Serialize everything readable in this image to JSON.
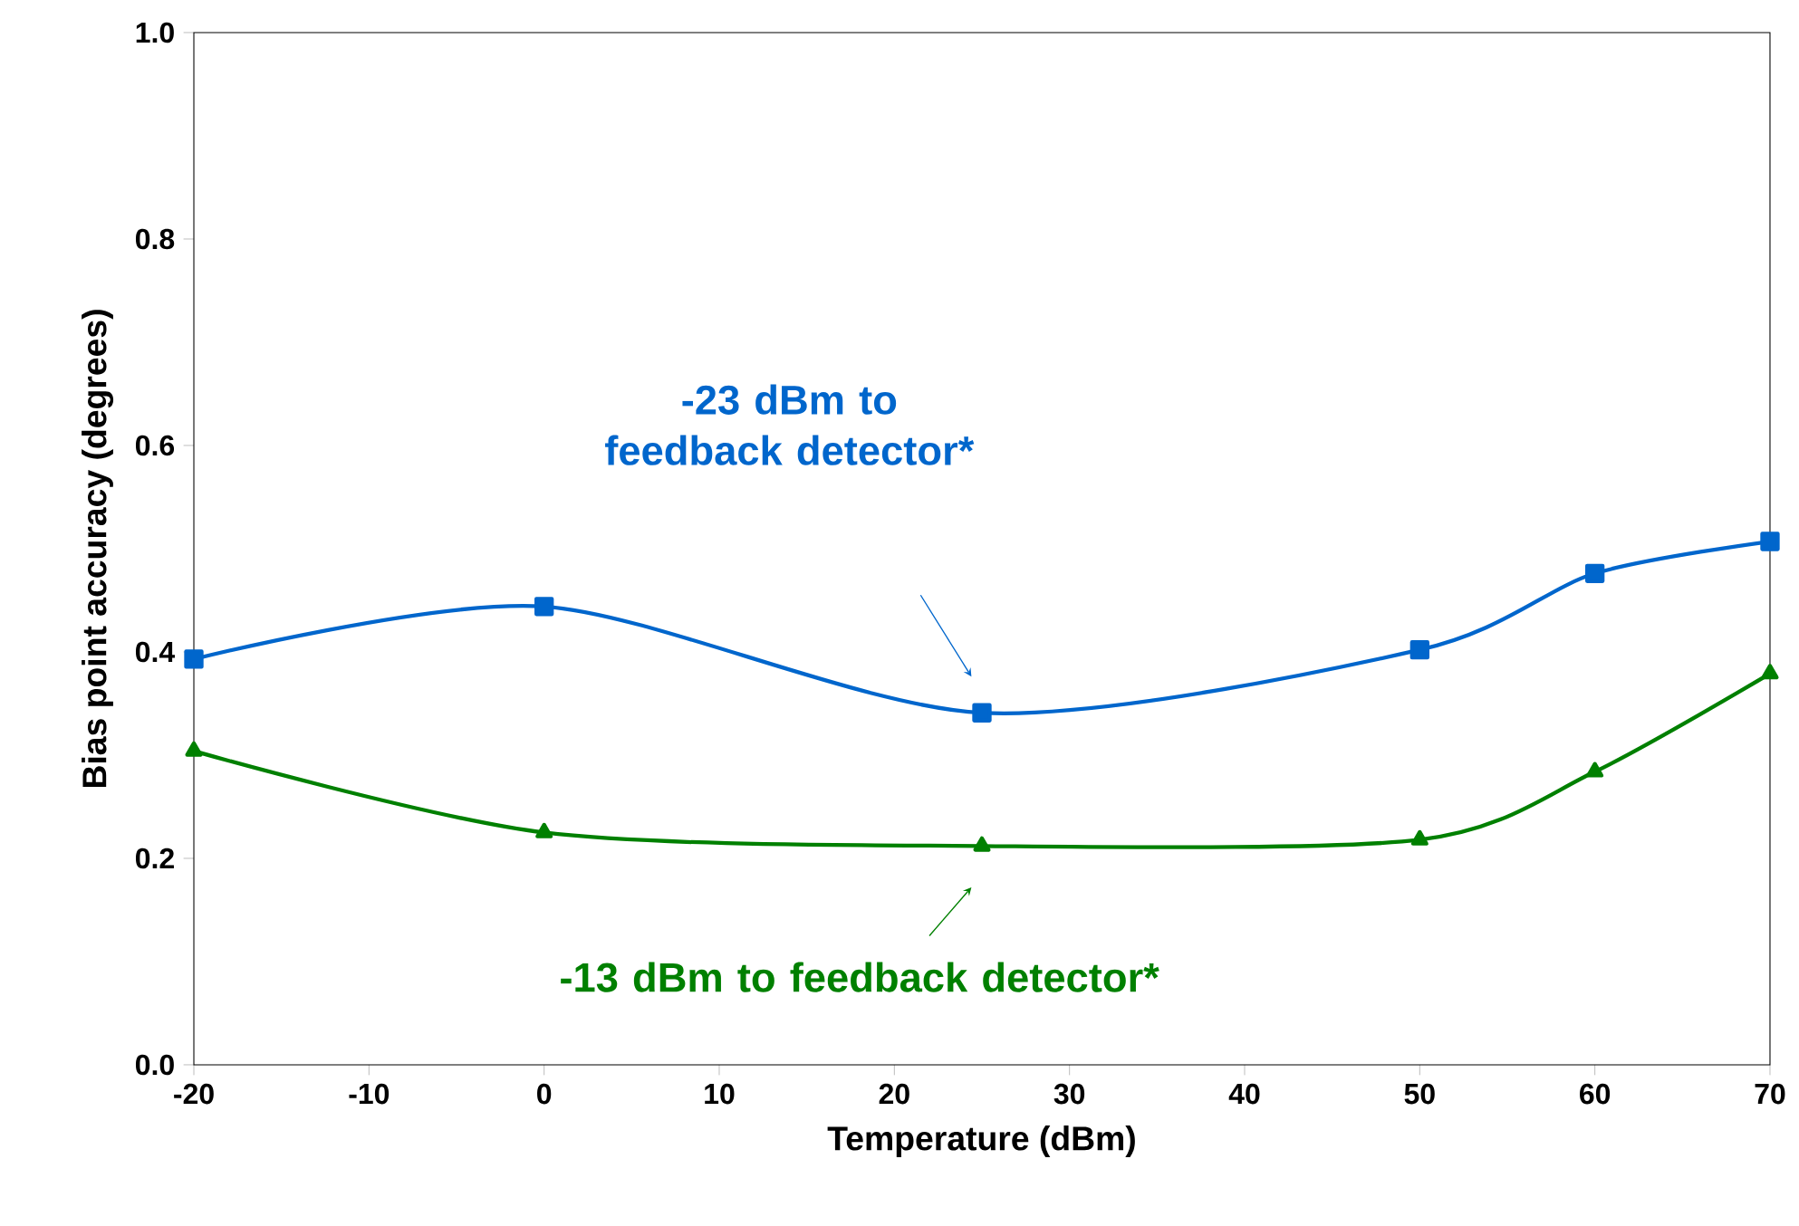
{
  "chart_data": {
    "type": "line",
    "xlabel": "Temperature (dBm)",
    "ylabel": "Bias point accuracy (degrees)",
    "x": [
      -20,
      0,
      25,
      50,
      60,
      70
    ],
    "series": [
      {
        "name": "-23 dBm to feedback detector*",
        "color": "#0066cc",
        "marker": "square",
        "values": [
          0.393,
          0.444,
          0.341,
          0.402,
          0.476,
          0.507
        ]
      },
      {
        "name": "-13 dBm to feedback detector*",
        "color": "#008000",
        "marker": "triangle",
        "values": [
          0.304,
          0.225,
          0.212,
          0.218,
          0.284,
          0.379
        ]
      }
    ],
    "xlim": [
      -20,
      70
    ],
    "xticks": [
      -20,
      -10,
      0,
      10,
      20,
      30,
      40,
      50,
      60,
      70
    ],
    "ylim": [
      0,
      1
    ],
    "yticks": [
      {
        "value": 0,
        "label": "0.0"
      },
      {
        "value": 0.2,
        "label": "0.2"
      },
      {
        "value": 0.4,
        "label": "0.4"
      },
      {
        "value": 0.6,
        "label": "0.6"
      },
      {
        "value": 0.8,
        "label": "0.8"
      },
      {
        "value": 1,
        "label": "1.0"
      }
    ],
    "grid": false
  }
}
